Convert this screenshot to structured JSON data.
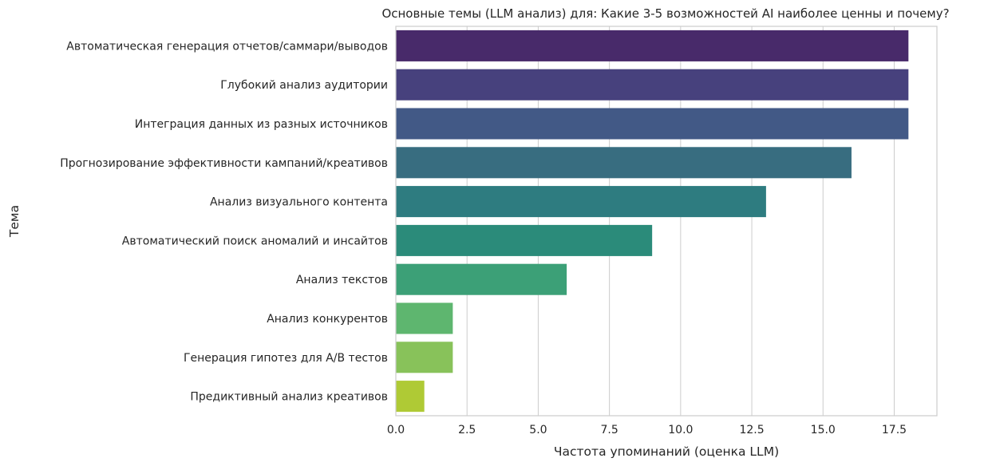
{
  "chart_data": {
    "type": "bar",
    "orientation": "horizontal",
    "title": "Основные темы (LLM анализ) для: Какие 3-5 возможностей AI наиболее ценны и почему?",
    "xlabel": "Частота упоминаний (оценка LLM)",
    "ylabel": "Тема",
    "xlim": [
      0,
      19
    ],
    "xticks": [
      0,
      2.5,
      5,
      7.5,
      10,
      12.5,
      15,
      17.5
    ],
    "xtick_labels": [
      "0.0",
      "2.5",
      "5.0",
      "7.5",
      "10.0",
      "12.5",
      "15.0",
      "17.5"
    ],
    "grid": "vertical",
    "categories": [
      "Автоматическая генерация отчетов/саммари/выводов",
      "Глубокий анализ аудитории",
      "Интеграция данных из разных источников",
      "Прогнозирование эффективности кампаний/креативов",
      "Анализ визуального контента",
      "Автоматический поиск аномалий и инсайтов",
      "Анализ текстов",
      "Анализ конкурентов",
      "Генерация гипотез для A/B тестов",
      "Предиктивный анализ креативов"
    ],
    "values": [
      18,
      18,
      18,
      16,
      13,
      9,
      6,
      2,
      2,
      1
    ],
    "colors": [
      "#482A6A",
      "#47417D",
      "#425986",
      "#386D80",
      "#2E7C80",
      "#2B8B7A",
      "#3CA077",
      "#5EB66F",
      "#88C25A",
      "#AFCA35"
    ]
  }
}
